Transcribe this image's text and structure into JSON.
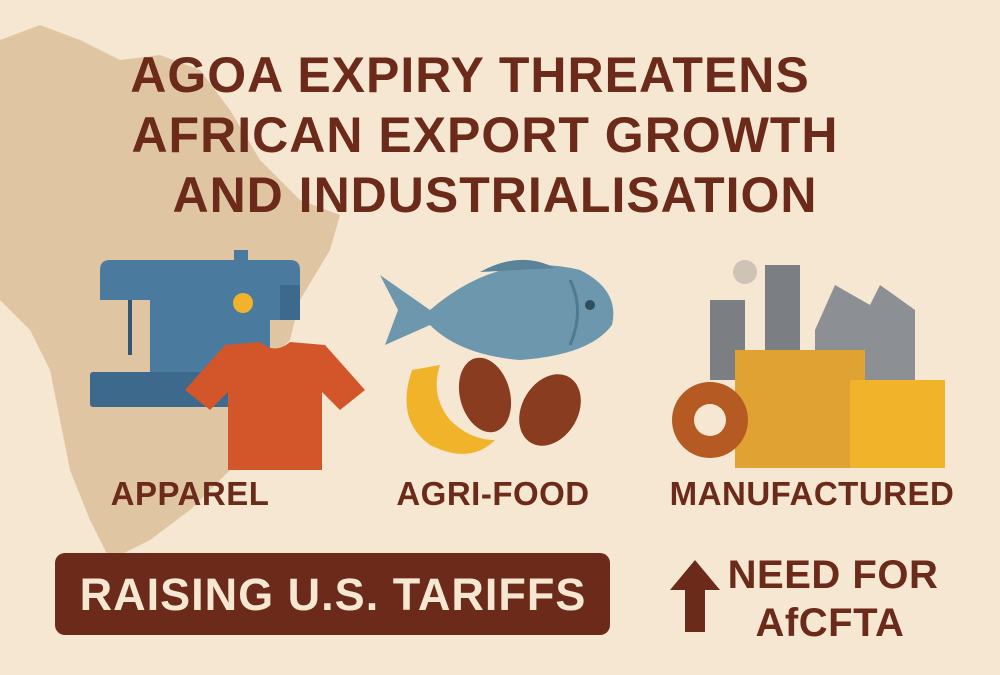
{
  "header": {
    "title_lines": [
      "AGOA EXPIRY THREATENS",
      "AFRICAN EXPORT GROWTH",
      "AND INDUSTRIALISATION"
    ]
  },
  "sectors": [
    {
      "label": "APPAREL"
    },
    {
      "label": "AGRI-FOOD"
    },
    {
      "label": "MANUFACTURED"
    }
  ],
  "banner": {
    "text": "RAISING U.S. TARIFFS"
  },
  "callout": {
    "lines": [
      "NEED FOR",
      "AfCFTA"
    ]
  }
}
